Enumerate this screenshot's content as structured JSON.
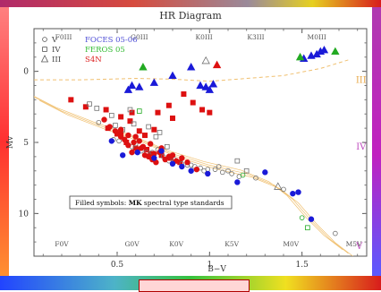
{
  "chart_data": {
    "type": "scatter",
    "title": "HR Diagram",
    "xlabel": "B−V",
    "ylabel": "Mv",
    "xlim": [
      0.05,
      1.85
    ],
    "ylim": [
      13,
      -3
    ],
    "x_ticks": [
      {
        "v": 0.5,
        "label": "0.5"
      },
      {
        "v": 1.0,
        "label": "1"
      },
      {
        "v": 1.5,
        "label": "1.5"
      }
    ],
    "y_ticks": [
      {
        "v": 0,
        "label": "0"
      },
      {
        "v": 5,
        "label": "5"
      },
      {
        "v": 10,
        "label": "10"
      }
    ],
    "top_spectral_labels": [
      {
        "x": 0.21,
        "label": "F0III"
      },
      {
        "x": 0.62,
        "label": "G0III"
      },
      {
        "x": 0.97,
        "label": "K0III"
      },
      {
        "x": 1.25,
        "label": "K3III"
      },
      {
        "x": 1.58,
        "label": "M0III"
      }
    ],
    "bottom_spectral_labels": [
      {
        "x": 0.2,
        "label": "F0V"
      },
      {
        "x": 0.58,
        "label": "G0V"
      },
      {
        "x": 0.82,
        "label": "K0V"
      },
      {
        "x": 1.12,
        "label": "K5V"
      },
      {
        "x": 1.44,
        "label": "M0V"
      },
      {
        "x": 1.78,
        "label": "M5V"
      }
    ],
    "luminosity_classes": [
      {
        "label": "III",
        "x": 1.82,
        "y": 0.8
      },
      {
        "label": "IV",
        "x": 1.82,
        "y": 5.5
      },
      {
        "label": "V",
        "x": 1.81,
        "y": 12.5
      }
    ],
    "legend": {
      "placement": "top-left",
      "symbols": [
        {
          "symbol": "circle",
          "label": "V"
        },
        {
          "symbol": "square",
          "label": "IV"
        },
        {
          "symbol": "triangle",
          "label": "III"
        }
      ],
      "sources": [
        {
          "label": "FOCES 05-06",
          "color": "#4f4fd6"
        },
        {
          "label": "FEROS 05",
          "color": "#33bb33"
        },
        {
          "label": "S4N",
          "color": "#dd2222"
        }
      ]
    },
    "annotation_parts": [
      "Filled symbols: ",
      "MK",
      " spectral type standards"
    ],
    "colors": {
      "blue": "#1a1ad8",
      "red": "#dd1111",
      "green": "#22aa22",
      "gray": "#707070",
      "guide": "#f0c070"
    },
    "guide_curves": {
      "giant_branch": [
        [
          0.05,
          0.6
        ],
        [
          0.3,
          0.6
        ],
        [
          0.6,
          0.5
        ],
        [
          0.8,
          0.55
        ],
        [
          1.0,
          0.7
        ],
        [
          1.2,
          0.5
        ],
        [
          1.4,
          0.3
        ],
        [
          1.6,
          -0.2
        ],
        [
          1.75,
          -0.8
        ]
      ],
      "main_sequence": [
        [
          0.05,
          1.8
        ],
        [
          0.2,
          2.8
        ],
        [
          0.4,
          3.8
        ],
        [
          0.6,
          4.7
        ],
        [
          0.8,
          5.8
        ],
        [
          1.0,
          6.6
        ],
        [
          1.2,
          7.2
        ],
        [
          1.35,
          8.0
        ],
        [
          1.45,
          9.0
        ],
        [
          1.55,
          10.5
        ],
        [
          1.65,
          11.8
        ],
        [
          1.75,
          12.8
        ]
      ]
    },
    "series": [
      {
        "marker": "triangle",
        "filled": true,
        "color": "blue",
        "points": [
          [
            0.56,
            1.3
          ],
          [
            0.58,
            1.0
          ],
          [
            0.62,
            1.1
          ],
          [
            0.7,
            0.8
          ],
          [
            0.8,
            0.3
          ],
          [
            0.9,
            -0.3
          ],
          [
            0.95,
            1.0
          ],
          [
            0.98,
            1.1
          ],
          [
            1.0,
            1.3
          ],
          [
            1.02,
            0.9
          ],
          [
            1.51,
            -0.9
          ],
          [
            1.55,
            -1.1
          ],
          [
            1.58,
            -1.2
          ],
          [
            1.6,
            -1.4
          ],
          [
            1.62,
            -1.5
          ]
        ]
      },
      {
        "marker": "triangle",
        "filled": true,
        "color": "red",
        "points": [
          [
            1.04,
            -0.45
          ]
        ]
      },
      {
        "marker": "triangle",
        "filled": true,
        "color": "green",
        "points": [
          [
            0.64,
            -0.3
          ],
          [
            1.49,
            -1.0
          ],
          [
            1.68,
            -1.4
          ]
        ]
      },
      {
        "marker": "triangle",
        "filled": false,
        "color": "gray",
        "points": [
          [
            0.98,
            -0.75
          ],
          [
            1.37,
            8.1
          ]
        ]
      },
      {
        "marker": "square",
        "filled": true,
        "color": "red",
        "points": [
          [
            0.25,
            2.0
          ],
          [
            0.33,
            2.5
          ],
          [
            0.44,
            2.7
          ],
          [
            0.52,
            3.2
          ],
          [
            0.57,
            3.5
          ],
          [
            0.58,
            2.9
          ],
          [
            0.62,
            4.2
          ],
          [
            0.65,
            4.5
          ],
          [
            0.7,
            4.1
          ],
          [
            0.72,
            2.9
          ],
          [
            0.78,
            2.4
          ],
          [
            0.8,
            3.3
          ],
          [
            0.86,
            1.6
          ],
          [
            0.91,
            2.2
          ],
          [
            0.96,
            2.7
          ],
          [
            1.0,
            2.9
          ],
          [
            0.52,
            4.3
          ],
          [
            0.55,
            5.0
          ],
          [
            0.6,
            5.4
          ],
          [
            0.66,
            5.5
          ],
          [
            0.68,
            5.8
          ],
          [
            0.74,
            5.9
          ],
          [
            0.79,
            6.1
          ],
          [
            0.84,
            6.4
          ],
          [
            0.5,
            4.4
          ],
          [
            0.45,
            4.0
          ]
        ]
      },
      {
        "marker": "square",
        "filled": false,
        "color": "gray",
        "points": [
          [
            0.35,
            2.3
          ],
          [
            0.39,
            2.6
          ],
          [
            0.47,
            3.1
          ],
          [
            0.49,
            3.8
          ],
          [
            0.53,
            4.1
          ],
          [
            0.59,
            3.7
          ],
          [
            0.67,
            3.9
          ],
          [
            0.73,
            4.3
          ],
          [
            0.77,
            5.3
          ],
          [
            0.57,
            2.7
          ],
          [
            0.71,
            4.6
          ],
          [
            1.15,
            6.3
          ],
          [
            1.2,
            7.0
          ]
        ]
      },
      {
        "marker": "square",
        "filled": false,
        "color": "green",
        "points": [
          [
            0.62,
            2.8
          ],
          [
            1.53,
            11.0
          ]
        ]
      },
      {
        "marker": "circle",
        "filled": false,
        "color": "gray",
        "points": [
          [
            0.4,
            3.6
          ],
          [
            0.48,
            4.8
          ],
          [
            0.51,
            4.9
          ],
          [
            0.6,
            5.1
          ],
          [
            0.63,
            5.6
          ],
          [
            0.69,
            5.7
          ],
          [
            0.72,
            5.5
          ],
          [
            0.75,
            6.0
          ],
          [
            0.81,
            6.2
          ],
          [
            0.85,
            6.5
          ],
          [
            0.88,
            6.6
          ],
          [
            0.92,
            6.7
          ],
          [
            0.95,
            6.8
          ],
          [
            0.99,
            6.9
          ],
          [
            1.03,
            6.9
          ],
          [
            1.07,
            7.1
          ],
          [
            1.1,
            7.0
          ],
          [
            1.12,
            7.2
          ],
          [
            1.16,
            7.4
          ],
          [
            1.25,
            7.5
          ],
          [
            1.4,
            8.3
          ],
          [
            1.68,
            11.4
          ],
          [
            0.58,
            5.3
          ],
          [
            0.66,
            5.7
          ],
          [
            0.78,
            6.3
          ],
          [
            0.9,
            6.6
          ],
          [
            0.97,
            7.0
          ],
          [
            1.05,
            6.7
          ]
        ]
      },
      {
        "marker": "circle",
        "filled": false,
        "color": "green",
        "points": [
          [
            1.18,
            7.3
          ],
          [
            1.5,
            10.3
          ]
        ]
      },
      {
        "marker": "circle",
        "filled": true,
        "color": "red",
        "points": [
          [
            0.43,
            3.4
          ],
          [
            0.46,
            3.9
          ],
          [
            0.49,
            4.2
          ],
          [
            0.52,
            4.6
          ],
          [
            0.54,
            4.8
          ],
          [
            0.56,
            5.2
          ],
          [
            0.59,
            5.0
          ],
          [
            0.61,
            5.5
          ],
          [
            0.64,
            5.3
          ],
          [
            0.67,
            6.0
          ],
          [
            0.7,
            5.8
          ],
          [
            0.73,
            5.7
          ],
          [
            0.76,
            6.2
          ],
          [
            0.78,
            6.0
          ],
          [
            0.82,
            6.3
          ],
          [
            0.85,
            6.1
          ],
          [
            0.6,
            4.6
          ],
          [
            0.65,
            5.9
          ],
          [
            0.71,
            6.4
          ],
          [
            0.74,
            5.4
          ],
          [
            0.88,
            6.4
          ],
          [
            0.93,
            6.9
          ],
          [
            0.52,
            4.1
          ],
          [
            0.56,
            4.5
          ],
          [
            0.62,
            4.9
          ],
          [
            0.68,
            5.1
          ],
          [
            0.58,
            5.7
          ],
          [
            0.8,
            5.9
          ],
          [
            0.69,
            6.2
          ],
          [
            0.63,
            5.4
          ]
        ]
      },
      {
        "marker": "circle",
        "filled": true,
        "color": "blue",
        "points": [
          [
            0.47,
            4.9
          ],
          [
            0.53,
            5.9
          ],
          [
            0.61,
            5.7
          ],
          [
            0.7,
            6.1
          ],
          [
            0.8,
            6.5
          ],
          [
            0.85,
            6.7
          ],
          [
            0.9,
            7.0
          ],
          [
            0.99,
            7.2
          ],
          [
            1.15,
            7.8
          ],
          [
            1.3,
            7.1
          ],
          [
            1.45,
            8.6
          ],
          [
            1.48,
            8.5
          ],
          [
            1.55,
            10.4
          ],
          [
            0.74,
            5.6
          ]
        ]
      }
    ]
  }
}
